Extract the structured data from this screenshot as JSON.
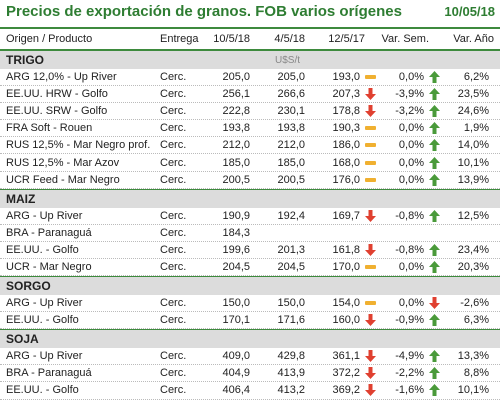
{
  "header": {
    "title": "Precios de exportación de granos. FOB varios orígenes",
    "date": "10/05/18"
  },
  "columns": {
    "product": "Origen / Producto",
    "delivery": "Entrega",
    "v1": "10/5/18",
    "v2": "4/5/18",
    "v3": "12/5/17",
    "var_week": "Var. Sem.",
    "var_year": "Var. Año"
  },
  "sections": [
    {
      "name": "TRIGO",
      "unit": "U$S/t",
      "rows": [
        {
          "product": "ARG 12,0% - Up River",
          "delivery": "Cerc.",
          "v1": "205,0",
          "v2": "205,0",
          "v3": "193,0",
          "icon1": "dash-icon",
          "var_week": "0,0%",
          "icon2": "arrow-up-icon",
          "var_year": "6,2%"
        },
        {
          "product": "EE.UU. HRW - Golfo",
          "delivery": "Cerc.",
          "v1": "256,1",
          "v2": "266,6",
          "v3": "207,3",
          "icon1": "arrow-down-icon",
          "var_week": "-3,9%",
          "icon2": "arrow-up-icon",
          "var_year": "23,5%"
        },
        {
          "product": "EE.UU. SRW - Golfo",
          "delivery": "Cerc.",
          "v1": "222,8",
          "v2": "230,1",
          "v3": "178,8",
          "icon1": "arrow-down-icon",
          "var_week": "-3,2%",
          "icon2": "arrow-up-icon",
          "var_year": "24,6%"
        },
        {
          "product": "FRA Soft - Rouen",
          "delivery": "Cerc.",
          "v1": "193,8",
          "v2": "193,8",
          "v3": "190,3",
          "icon1": "dash-icon",
          "var_week": "0,0%",
          "icon2": "arrow-up-icon",
          "var_year": "1,9%"
        },
        {
          "product": "RUS 12,5% - Mar Negro prof.",
          "delivery": "Cerc.",
          "v1": "212,0",
          "v2": "212,0",
          "v3": "186,0",
          "icon1": "dash-icon",
          "var_week": "0,0%",
          "icon2": "arrow-up-icon",
          "var_year": "14,0%"
        },
        {
          "product": "RUS 12,5% - Mar Azov",
          "delivery": "Cerc.",
          "v1": "185,0",
          "v2": "185,0",
          "v3": "168,0",
          "icon1": "dash-icon",
          "var_week": "0,0%",
          "icon2": "arrow-up-icon",
          "var_year": "10,1%"
        },
        {
          "product": "UCR Feed - Mar Negro",
          "delivery": "Cerc.",
          "v1": "200,5",
          "v2": "200,5",
          "v3": "176,0",
          "icon1": "dash-icon",
          "var_week": "0,0%",
          "icon2": "arrow-up-icon",
          "var_year": "13,9%"
        }
      ]
    },
    {
      "name": "MAIZ",
      "unit": "",
      "rows": [
        {
          "product": "ARG - Up River",
          "delivery": "Cerc.",
          "v1": "190,9",
          "v2": "192,4",
          "v3": "169,7",
          "icon1": "arrow-down-icon",
          "var_week": "-0,8%",
          "icon2": "arrow-up-icon",
          "var_year": "12,5%"
        },
        {
          "product": "BRA - Paranaguá",
          "delivery": "Cerc.",
          "v1": "184,3",
          "v2": "",
          "v3": "",
          "icon1": "",
          "var_week": "",
          "icon2": "",
          "var_year": ""
        },
        {
          "product": "EE.UU. - Golfo",
          "delivery": "Cerc.",
          "v1": "199,6",
          "v2": "201,3",
          "v3": "161,8",
          "icon1": "arrow-down-icon",
          "var_week": "-0,8%",
          "icon2": "arrow-up-icon",
          "var_year": "23,4%"
        },
        {
          "product": "UCR - Mar Negro",
          "delivery": "Cerc.",
          "v1": "204,5",
          "v2": "204,5",
          "v3": "170,0",
          "icon1": "dash-icon",
          "var_week": "0,0%",
          "icon2": "arrow-up-icon",
          "var_year": "20,3%"
        }
      ]
    },
    {
      "name": "SORGO",
      "unit": "",
      "rows": [
        {
          "product": "ARG - Up River",
          "delivery": "Cerc.",
          "v1": "150,0",
          "v2": "150,0",
          "v3": "154,0",
          "icon1": "dash-icon",
          "var_week": "0,0%",
          "icon2": "arrow-down-icon",
          "var_year": "-2,6%"
        },
        {
          "product": "EE.UU. - Golfo",
          "delivery": "Cerc.",
          "v1": "170,1",
          "v2": "171,6",
          "v3": "160,0",
          "icon1": "arrow-down-icon",
          "var_week": "-0,9%",
          "icon2": "arrow-up-icon",
          "var_year": "6,3%"
        }
      ]
    },
    {
      "name": "SOJA",
      "unit": "",
      "rows": [
        {
          "product": "ARG - Up River",
          "delivery": "Cerc.",
          "v1": "409,0",
          "v2": "429,8",
          "v3": "361,1",
          "icon1": "arrow-down-icon",
          "var_week": "-4,9%",
          "icon2": "arrow-up-icon",
          "var_year": "13,3%"
        },
        {
          "product": "BRA - Paranaguá",
          "delivery": "Cerc.",
          "v1": "404,9",
          "v2": "413,9",
          "v3": "372,2",
          "icon1": "arrow-down-icon",
          "var_week": "-2,2%",
          "icon2": "arrow-up-icon",
          "var_year": "8,8%"
        },
        {
          "product": "EE.UU. - Golfo",
          "delivery": "Cerc.",
          "v1": "406,4",
          "v2": "413,2",
          "v3": "369,2",
          "icon1": "arrow-down-icon",
          "var_week": "-1,6%",
          "icon2": "arrow-up-icon",
          "var_year": "10,1%"
        }
      ]
    }
  ],
  "colors": {
    "up": "#4a9a3a",
    "down": "#e04030",
    "flat": "#f0b030",
    "accent": "#2e7d32"
  }
}
